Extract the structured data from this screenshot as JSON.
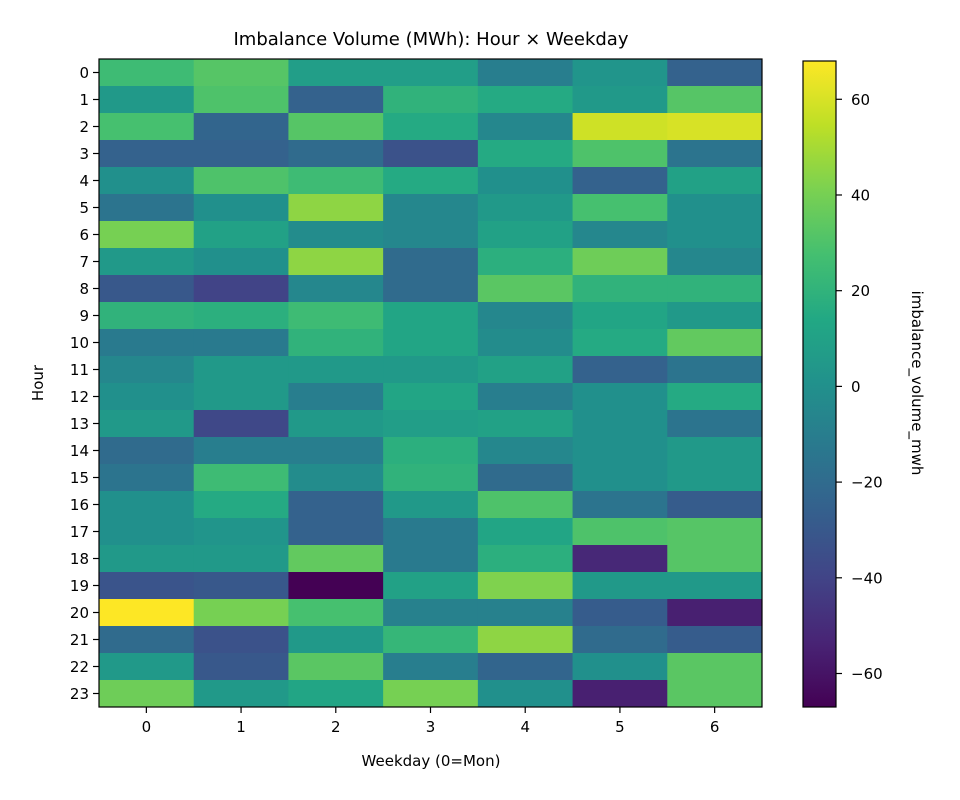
{
  "chart_data": {
    "type": "heatmap",
    "title": "Imbalance Volume (MWh): Hour × Weekday",
    "xlabel": "Weekday (0=Mon)",
    "ylabel": "Hour",
    "x_categories": [
      "0",
      "1",
      "2",
      "3",
      "4",
      "5",
      "6"
    ],
    "y_categories": [
      "0",
      "1",
      "2",
      "3",
      "4",
      "5",
      "6",
      "7",
      "8",
      "9",
      "10",
      "11",
      "12",
      "13",
      "14",
      "15",
      "16",
      "17",
      "18",
      "19",
      "20",
      "21",
      "22",
      "23"
    ],
    "values": [
      [
        25,
        32,
        8,
        8,
        -10,
        3,
        -25
      ],
      [
        5,
        30,
        -25,
        20,
        15,
        5,
        32
      ],
      [
        28,
        -23,
        32,
        15,
        -5,
        58,
        60
      ],
      [
        -25,
        -25,
        -20,
        -33,
        15,
        30,
        -15
      ],
      [
        0,
        30,
        25,
        15,
        0,
        -25,
        10
      ],
      [
        -15,
        0,
        45,
        -5,
        5,
        28,
        0
      ],
      [
        40,
        10,
        -2,
        -5,
        10,
        -5,
        0
      ],
      [
        5,
        0,
        45,
        -20,
        18,
        38,
        -5
      ],
      [
        -30,
        -40,
        -5,
        -20,
        33,
        20,
        20
      ],
      [
        20,
        18,
        25,
        12,
        -5,
        12,
        5
      ],
      [
        -12,
        -12,
        20,
        12,
        -2,
        15,
        35
      ],
      [
        -5,
        5,
        5,
        5,
        10,
        -25,
        -15
      ],
      [
        0,
        5,
        -10,
        12,
        -10,
        0,
        15
      ],
      [
        5,
        -38,
        5,
        8,
        10,
        0,
        -15
      ],
      [
        -20,
        -10,
        -10,
        18,
        -5,
        0,
        5
      ],
      [
        -15,
        25,
        -2,
        20,
        -20,
        0,
        5
      ],
      [
        0,
        15,
        -25,
        5,
        30,
        -15,
        -28
      ],
      [
        0,
        3,
        -25,
        -12,
        12,
        30,
        32
      ],
      [
        5,
        5,
        35,
        -12,
        18,
        -52,
        32
      ],
      [
        -32,
        -30,
        -67,
        10,
        42,
        5,
        5
      ],
      [
        68,
        40,
        28,
        -8,
        -8,
        -28,
        -55
      ],
      [
        -20,
        -33,
        5,
        22,
        45,
        -20,
        -28
      ],
      [
        5,
        -30,
        33,
        -10,
        -23,
        0,
        33
      ],
      [
        38,
        5,
        12,
        40,
        0,
        -55,
        33
      ]
    ],
    "colorbar": {
      "label": "imbalance_volume_mwh",
      "range": [
        -67,
        68
      ],
      "ticks": [
        -60,
        -40,
        -20,
        0,
        20,
        40,
        60
      ],
      "tick_labels": [
        "−60",
        "−40",
        "−20",
        "0",
        "20",
        "40",
        "60"
      ],
      "colormap": "viridis"
    }
  }
}
